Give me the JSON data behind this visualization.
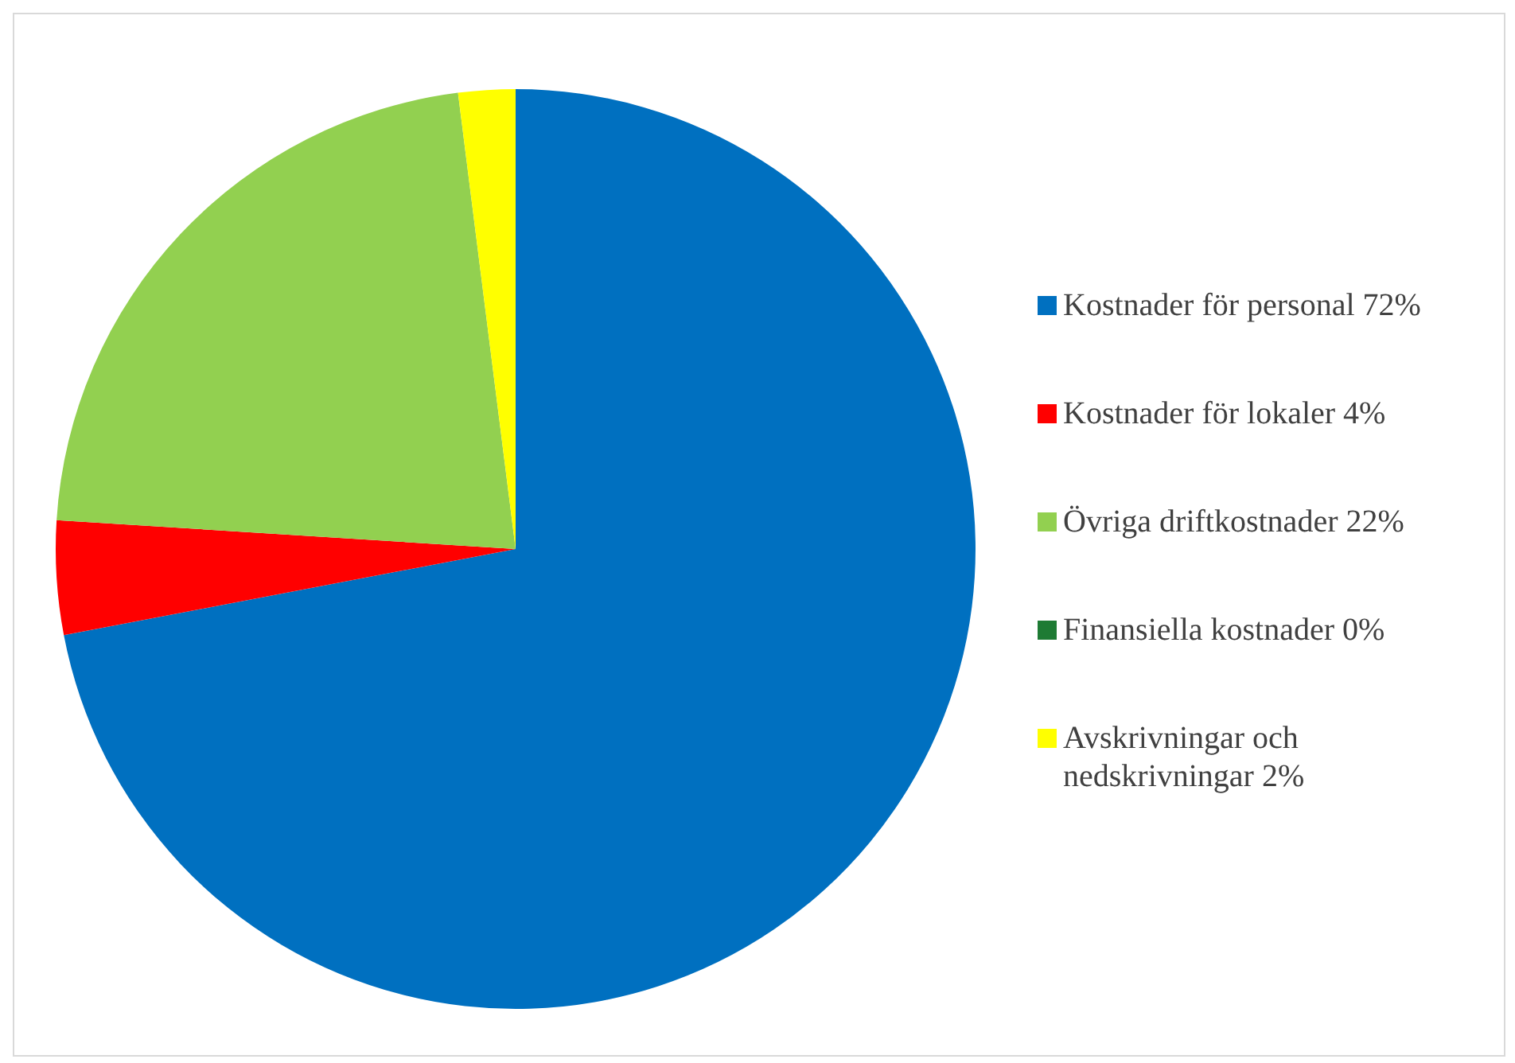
{
  "chart_data": {
    "type": "pie",
    "categories": [
      "Kostnader för personal 72%",
      "Kostnader för lokaler 4%",
      "Övriga driftkostnader 22%",
      "Finansiella kostnader 0%",
      "Avskrivningar och nedskrivningar 2%"
    ],
    "values": [
      72,
      4,
      22,
      0,
      2
    ],
    "colors": [
      "#0070c0",
      "#ff0000",
      "#92d050",
      "#1e7b34",
      "#ffff00"
    ],
    "legend": "right"
  }
}
